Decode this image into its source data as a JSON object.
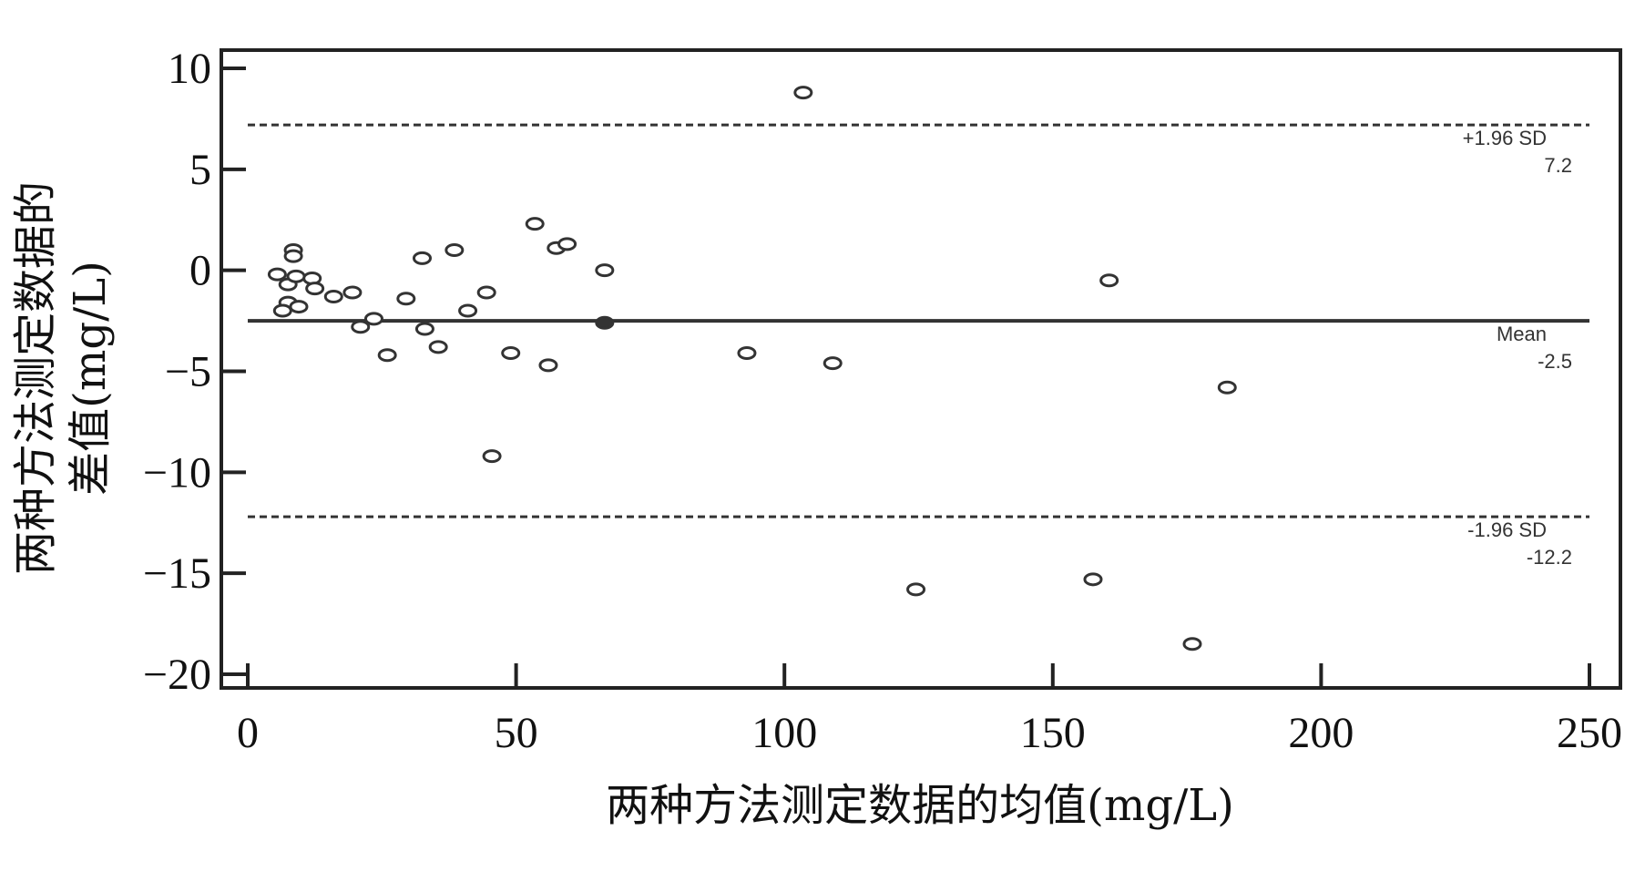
{
  "chart_data": {
    "type": "scatter",
    "title": "",
    "xlabel": "两种方法测定数据的均值(mg/L)",
    "ylabel_line1": "两种方法测定数据的",
    "ylabel_line2": "差值(mg/L)",
    "xlim": [
      0,
      250
    ],
    "ylim": [
      -20,
      10
    ],
    "x_ticks": [
      0,
      50,
      100,
      150,
      200,
      250
    ],
    "x_tick_labels": [
      "0",
      "50",
      "100",
      "150",
      "200",
      "250"
    ],
    "y_ticks": [
      10,
      5,
      0,
      -5,
      -10,
      -15,
      -20
    ],
    "y_tick_labels": [
      "10",
      "5",
      "0",
      "−5",
      "−10",
      "−15",
      "−20"
    ],
    "grid": false,
    "reference_lines": [
      {
        "name": "+1.96 SD",
        "value": 7.2,
        "label_top": "+1.96 SD",
        "label_bottom": "7.2",
        "style": "dashed"
      },
      {
        "name": "Mean",
        "value": -2.5,
        "label_top": "Mean",
        "label_bottom": "-2.5",
        "style": "solid"
      },
      {
        "name": "-1.96 SD",
        "value": -12.2,
        "label_top": "-1.96 SD",
        "label_bottom": "-12.2",
        "style": "dashed"
      }
    ],
    "points": [
      {
        "x": 5.5,
        "y": -0.2
      },
      {
        "x": 7.5,
        "y": -0.7
      },
      {
        "x": 8.5,
        "y": 1.0
      },
      {
        "x": 8.5,
        "y": 0.7
      },
      {
        "x": 9.0,
        "y": -0.3
      },
      {
        "x": 7.5,
        "y": -1.6
      },
      {
        "x": 6.5,
        "y": -2.0
      },
      {
        "x": 9.5,
        "y": -1.8
      },
      {
        "x": 12.0,
        "y": -0.4
      },
      {
        "x": 12.5,
        "y": -0.9
      },
      {
        "x": 16.0,
        "y": -1.3
      },
      {
        "x": 19.5,
        "y": -1.1
      },
      {
        "x": 21.0,
        "y": -2.8
      },
      {
        "x": 23.5,
        "y": -2.4
      },
      {
        "x": 26.0,
        "y": -4.2
      },
      {
        "x": 29.5,
        "y": -1.4
      },
      {
        "x": 32.5,
        "y": 0.6
      },
      {
        "x": 33.0,
        "y": -2.9
      },
      {
        "x": 35.5,
        "y": -3.8
      },
      {
        "x": 38.5,
        "y": 1.0
      },
      {
        "x": 41.0,
        "y": -2.0
      },
      {
        "x": 44.5,
        "y": -1.1
      },
      {
        "x": 45.5,
        "y": -9.2
      },
      {
        "x": 49.0,
        "y": -4.1
      },
      {
        "x": 53.5,
        "y": 2.3
      },
      {
        "x": 56.0,
        "y": -4.7
      },
      {
        "x": 57.5,
        "y": 1.1
      },
      {
        "x": 59.5,
        "y": 1.3
      },
      {
        "x": 66.5,
        "y": 0.0
      },
      {
        "x": 66.5,
        "y": -2.6
      },
      {
        "x": 93.0,
        "y": -4.1
      },
      {
        "x": 103.5,
        "y": 8.8
      },
      {
        "x": 109.0,
        "y": -4.6
      },
      {
        "x": 124.5,
        "y": -15.8
      },
      {
        "x": 157.5,
        "y": -15.3
      },
      {
        "x": 160.5,
        "y": -0.5
      },
      {
        "x": 176.0,
        "y": -18.5
      },
      {
        "x": 182.5,
        "y": -5.8
      }
    ],
    "filled_point_index": 29
  }
}
